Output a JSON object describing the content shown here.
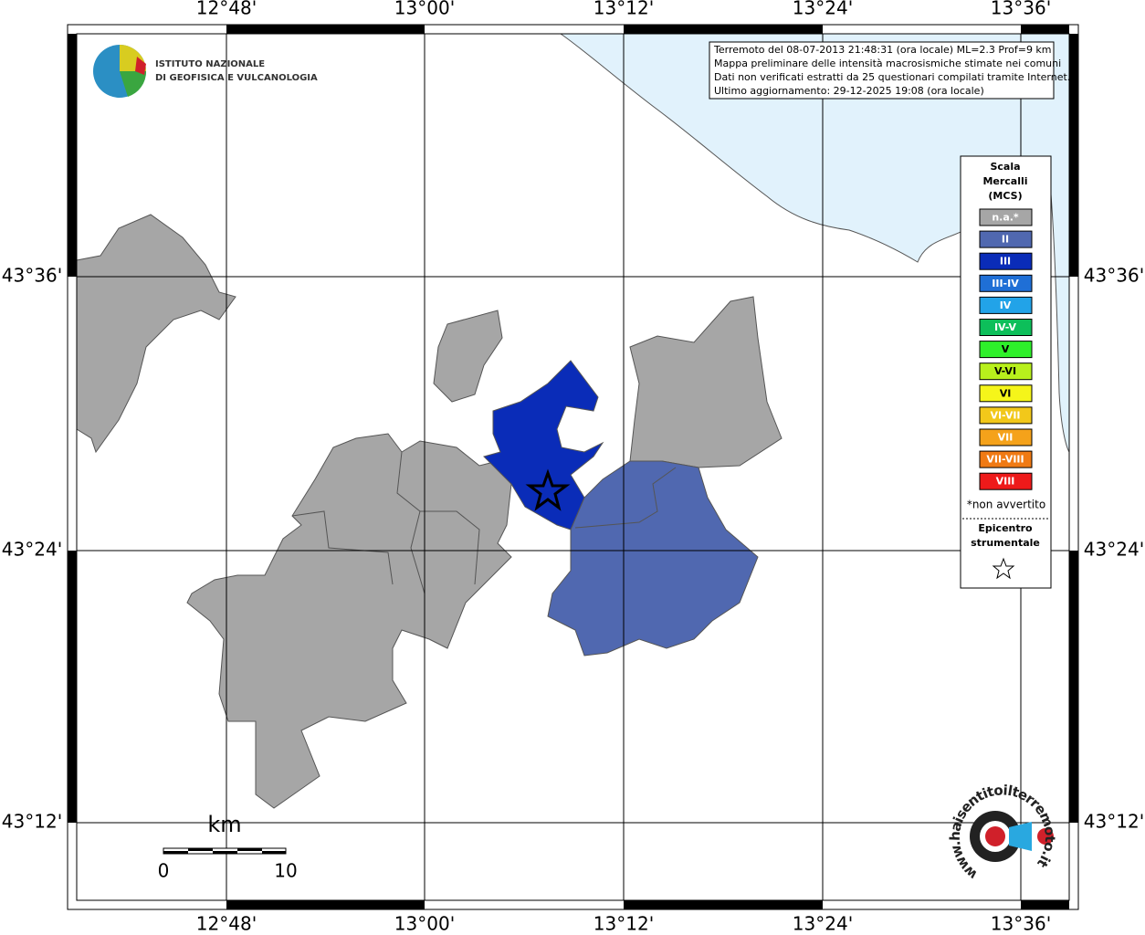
{
  "map": {
    "longitude_labels": [
      "12°48'",
      "13°00'",
      "13°12'",
      "13°24'",
      "13°36'"
    ],
    "latitude_labels": [
      "43°36'",
      "43°24'",
      "43°12'"
    ],
    "institute": [
      "ISTITUTO NAZIONALE",
      "DI GEOFISICA E VULCANOLOGIA"
    ],
    "info": [
      "Terremoto del 08-07-2013 21:48:31 (ora locale) ML=2.3 Prof=9 km",
      "Mappa preliminare delle intensità macrosismiche stimate nei comuni",
      "Dati non verificati estratti da 25 questionari compilati tramite Internet.",
      "Ultimo aggiornamento: 29-12-2025 19:08 (ora locale)"
    ],
    "legend": {
      "title": [
        "Scala",
        "Mercalli",
        "(MCS)"
      ],
      "items": [
        {
          "label": "n.a.*",
          "color": "#a6a6a6"
        },
        {
          "label": "II",
          "color": "#5068b0"
        },
        {
          "label": "III",
          "color": "#0a2cb8"
        },
        {
          "label": "III-IV",
          "color": "#1f6fd6"
        },
        {
          "label": "IV",
          "color": "#22a3e8"
        },
        {
          "label": "IV-V",
          "color": "#0dbf5a"
        },
        {
          "label": "V",
          "color": "#2ef02a"
        },
        {
          "label": "V-VI",
          "color": "#b8f01c"
        },
        {
          "label": "VI",
          "color": "#f5f51a"
        },
        {
          "label": "VI-VII",
          "color": "#f2c81a"
        },
        {
          "label": "VII",
          "color": "#f5a21a"
        },
        {
          "label": "VII-VIII",
          "color": "#f07a14"
        },
        {
          "label": "VIII",
          "color": "#ee1a1a"
        }
      ],
      "note": "*non avvertito",
      "epicenter": [
        "Epicentro",
        "strumentale"
      ]
    },
    "scale_bar": {
      "unit": "km",
      "labels": [
        "0",
        "10"
      ]
    },
    "site": "www.haisentitoilterremoto.it"
  }
}
